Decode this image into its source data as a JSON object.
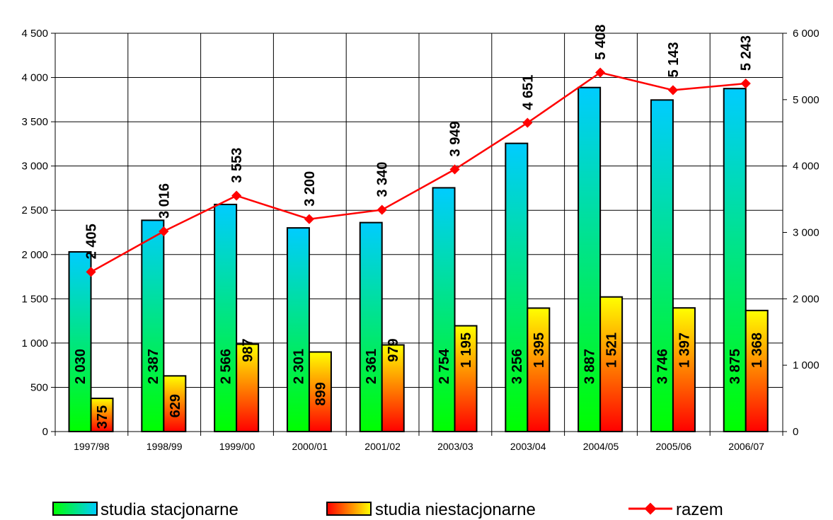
{
  "chart_data": {
    "type": "bar",
    "categories": [
      "1997/98",
      "1998/99",
      "1999/00",
      "2000/01",
      "2001/02",
      "2003/03",
      "2003/04",
      "2004/05",
      "2005/06",
      "2006/07"
    ],
    "series": [
      {
        "name": "studia stacjonarne",
        "type": "bar",
        "axis": "left",
        "values": [
          2030,
          2387,
          2566,
          2301,
          2361,
          2754,
          3256,
          3887,
          3746,
          3875
        ],
        "labels": [
          "2 030",
          "2 387",
          "2 566",
          "2 301",
          "2 361",
          "2 754",
          "3 256",
          "3 887",
          "3 746",
          "3 875"
        ],
        "gradient": [
          "#00ff00",
          "#00ccff"
        ]
      },
      {
        "name": "studia niestacjonarne",
        "type": "bar",
        "axis": "left",
        "values": [
          375,
          629,
          987,
          899,
          979,
          1195,
          1395,
          1521,
          1397,
          1368
        ],
        "labels": [
          "375",
          "629",
          "987",
          "899",
          "979",
          "1 195",
          "1 395",
          "1 521",
          "1 397",
          "1 368"
        ],
        "gradient": [
          "#ff0000",
          "#ffff00"
        ]
      },
      {
        "name": "razem",
        "type": "line",
        "axis": "right",
        "values": [
          2405,
          3016,
          3553,
          3200,
          3340,
          3949,
          4651,
          5408,
          5143,
          5243
        ],
        "labels": [
          "2 405",
          "3 016",
          "3 553",
          "3 200",
          "3 340",
          "3 949",
          "4 651",
          "5 408",
          "5 143",
          "5 243"
        ],
        "color": "#ff0000"
      }
    ],
    "y_left": {
      "min": 0,
      "max": 4500,
      "step": 500,
      "tick_labels": [
        "0",
        "500",
        "1 000",
        "1 500",
        "2 000",
        "2 500",
        "3 000",
        "3 500",
        "4 000",
        "4 500"
      ]
    },
    "y_right": {
      "min": 0,
      "max": 6000,
      "step": 1000,
      "tick_labels": [
        "0",
        "1 000",
        "2 000",
        "3 000",
        "4 000",
        "5 000",
        "6 000"
      ]
    },
    "grid": true,
    "legend_position": "bottom"
  }
}
